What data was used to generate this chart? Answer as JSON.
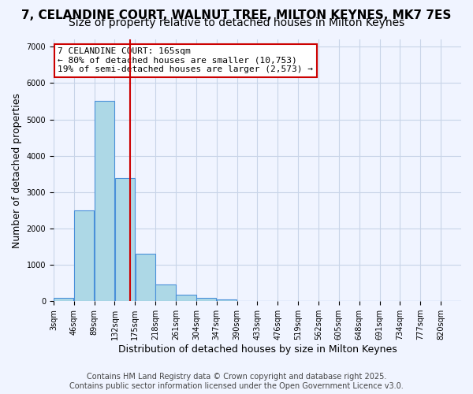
{
  "title_line1": "7, CELANDINE COURT, WALNUT TREE, MILTON KEYNES, MK7 7ES",
  "title_line2": "Size of property relative to detached houses in Milton Keynes",
  "xlabel": "Distribution of detached houses by size in Milton Keynes",
  "ylabel": "Number of detached properties",
  "bar_color": "#add8e6",
  "bar_edge_color": "#4a90d9",
  "background_color": "#f0f4ff",
  "grid_color": "#c8d4e8",
  "vline_color": "#cc0000",
  "vline_x": 165,
  "annotation_title": "7 CELANDINE COURT: 165sqm",
  "annotation_line2": "← 80% of detached houses are smaller (10,753)",
  "annotation_line3": "19% of semi-detached houses are larger (2,573) →",
  "annotation_box_color": "#cc0000",
  "bins": [
    3,
    46,
    89,
    132,
    175,
    218,
    261,
    304,
    347,
    390,
    433,
    476,
    519,
    562,
    605,
    648,
    691,
    734,
    777,
    820,
    863
  ],
  "counts": [
    90,
    2500,
    5500,
    3380,
    1300,
    460,
    185,
    90,
    40,
    0,
    0,
    0,
    0,
    0,
    0,
    0,
    0,
    0,
    0,
    0
  ],
  "ylim": [
    0,
    7200
  ],
  "yticks": [
    0,
    1000,
    2000,
    3000,
    4000,
    5000,
    6000,
    7000
  ],
  "footer_line1": "Contains HM Land Registry data © Crown copyright and database right 2025.",
  "footer_line2": "Contains public sector information licensed under the Open Government Licence v3.0.",
  "title_fontsize": 11,
  "subtitle_fontsize": 10,
  "axis_label_fontsize": 9,
  "tick_fontsize": 7,
  "annotation_fontsize": 8,
  "footer_fontsize": 7
}
